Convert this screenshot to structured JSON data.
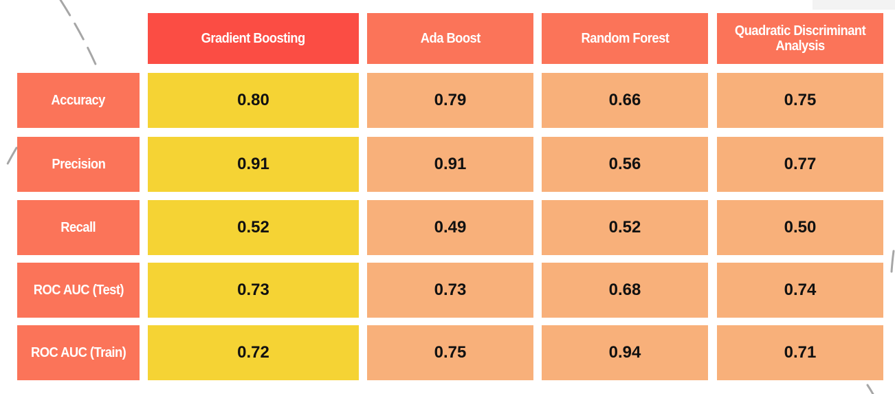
{
  "colors": {
    "highlight_header": "#fb4d44",
    "header": "#fb7459",
    "row_header": "#fb7459",
    "highlight_cell": "#f5d334",
    "cell": "#f8b07a",
    "decoration": "#a6a6a6"
  },
  "chart_data": {
    "type": "table",
    "title": "",
    "columns": [
      "Gradient Boosting",
      "Ada Boost",
      "Random Forest",
      "Quadratic Discriminant Analysis"
    ],
    "rows": [
      "Accuracy",
      "Precision",
      "Recall",
      "ROC AUC (Test)",
      "ROC AUC (Train)"
    ],
    "values": [
      [
        "0.80",
        "0.79",
        "0.66",
        "0.75"
      ],
      [
        "0.91",
        "0.91",
        "0.56",
        "0.77"
      ],
      [
        "0.52",
        "0.49",
        "0.52",
        "0.50"
      ],
      [
        "0.73",
        "0.73",
        "0.68",
        "0.74"
      ],
      [
        "0.72",
        "0.75",
        "0.94",
        "0.71"
      ]
    ],
    "highlighted_column": "Gradient Boosting"
  }
}
